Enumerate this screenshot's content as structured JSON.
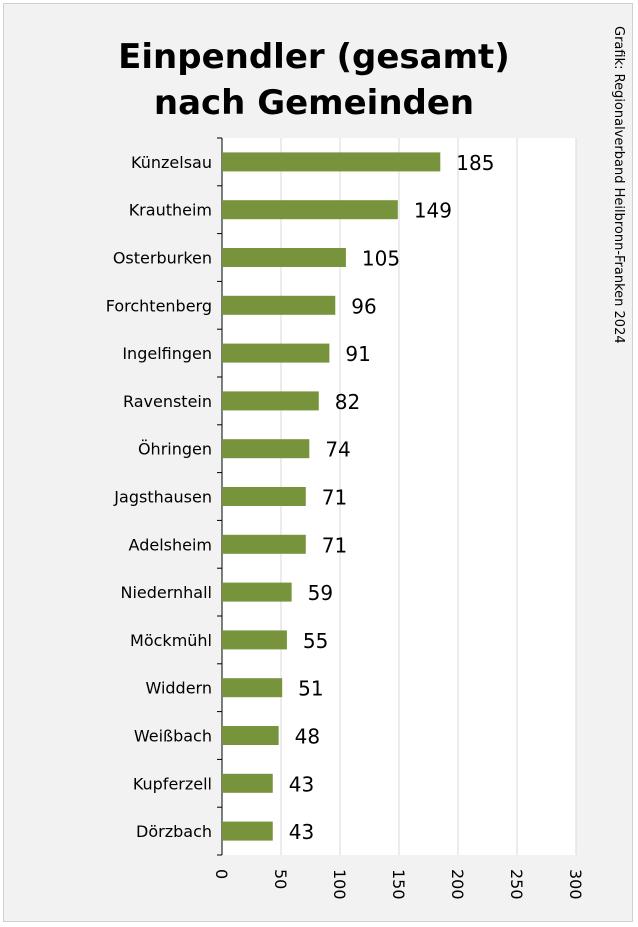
{
  "chart_data": {
    "type": "bar",
    "orientation": "horizontal",
    "title": "Einpendler (gesamt) nach Gemeinden",
    "title_lines": [
      "Einpendler (gesamt)",
      "nach Gemeinden"
    ],
    "credit": "Grafik: Regionalverband Heilbronn-Franken 2024",
    "categories": [
      "Künzelsau",
      "Krautheim",
      "Osterburken",
      "Forchtenberg",
      "Ingelfingen",
      "Ravenstein",
      "Öhringen",
      "Jagsthausen",
      "Adelsheim",
      "Niedernhall",
      "Möckmühl",
      "Widdern",
      "Weißbach",
      "Kupferzell",
      "Dörzbach"
    ],
    "values": [
      185,
      149,
      105,
      96,
      91,
      82,
      74,
      71,
      71,
      59,
      55,
      51,
      48,
      43,
      43
    ],
    "xlim": [
      0,
      300
    ],
    "xticks": [
      0,
      50,
      100,
      150,
      200,
      250,
      300
    ],
    "grid": "vertical",
    "legend": "none",
    "bar_color": "#77933c"
  }
}
